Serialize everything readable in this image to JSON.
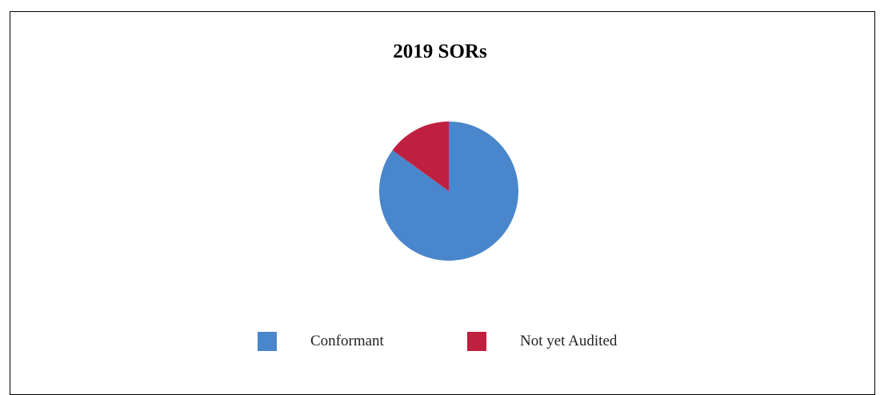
{
  "chart_data": {
    "type": "pie",
    "title": "2019 SORs",
    "slices": [
      {
        "label": "Conformant",
        "value": 85,
        "color": "#4A86CB"
      },
      {
        "label": "Not yet Audited",
        "value": 15,
        "color": "#C0203F"
      }
    ],
    "legend_position": "bottom",
    "start_angle": "12 o'clock, clockwise",
    "slice_order": "Conformant first"
  }
}
